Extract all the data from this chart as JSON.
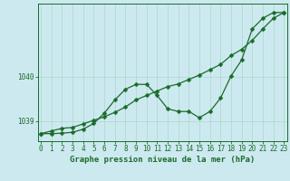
{
  "title": "Graphe pression niveau de la mer (hPa)",
  "bg_color": "#cde9f0",
  "grid_color": "#a8d8c8",
  "line_color": "#1a6b2a",
  "ytick_labels": [
    "1039",
    "1040"
  ],
  "ytick_vals": [
    1039.0,
    1040.0
  ],
  "xtick_vals": [
    0,
    1,
    2,
    3,
    4,
    5,
    6,
    7,
    8,
    9,
    10,
    11,
    12,
    13,
    14,
    15,
    16,
    17,
    18,
    19,
    20,
    21,
    22,
    23
  ],
  "ylim": [
    1038.55,
    1041.65
  ],
  "xlim": [
    -0.3,
    23.3
  ],
  "series1_x": [
    0,
    1,
    2,
    3,
    4,
    5,
    6,
    7,
    8,
    9,
    10,
    11,
    12,
    13,
    14,
    15,
    16,
    17,
    18,
    19,
    20,
    21,
    22,
    23
  ],
  "series1_y": [
    1038.72,
    1038.72,
    1038.73,
    1038.75,
    1038.82,
    1038.95,
    1039.18,
    1039.48,
    1039.72,
    1039.83,
    1039.83,
    1039.58,
    1039.28,
    1039.22,
    1039.22,
    1039.08,
    1039.22,
    1039.52,
    1040.02,
    1040.38,
    1041.08,
    1041.32,
    1041.45,
    1041.45
  ],
  "series2_x": [
    0,
    1,
    2,
    3,
    4,
    5,
    6,
    7,
    8,
    9,
    10,
    11,
    12,
    13,
    14,
    15,
    16,
    17,
    18,
    19,
    20,
    21,
    22,
    23
  ],
  "series2_y": [
    1038.72,
    1038.78,
    1038.84,
    1038.86,
    1038.94,
    1039.02,
    1039.1,
    1039.2,
    1039.32,
    1039.48,
    1039.58,
    1039.68,
    1039.78,
    1039.84,
    1039.94,
    1040.04,
    1040.16,
    1040.28,
    1040.48,
    1040.62,
    1040.82,
    1041.08,
    1041.32,
    1041.45
  ],
  "marker_size": 2.5,
  "line_width": 0.9,
  "tick_fontsize": 5.5,
  "label_fontsize": 6.5
}
